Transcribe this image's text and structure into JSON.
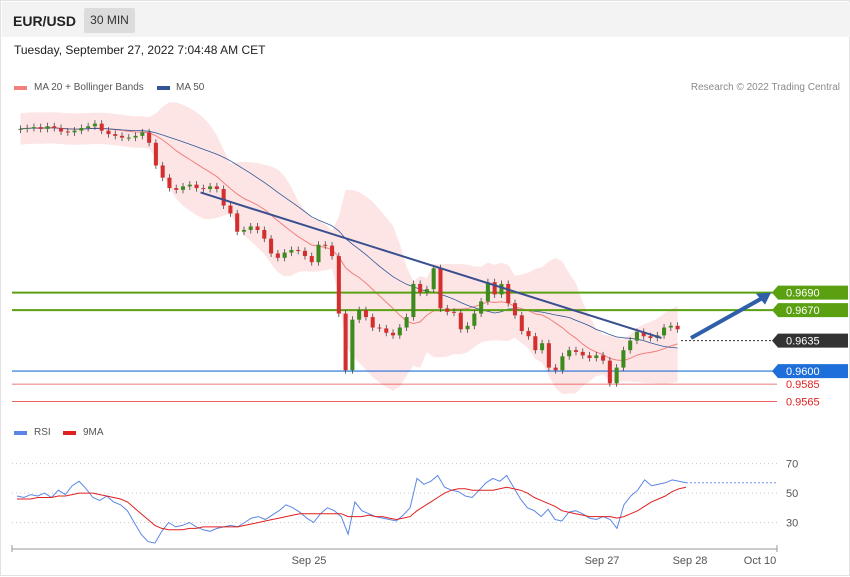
{
  "header": {
    "pair": "EUR/USD",
    "interval": "30 MIN",
    "datetime": "Tuesday, September 27, 2022 7:04:48 AM CET"
  },
  "legend": {
    "ma20_label": "MA 20 + Bollinger Bands",
    "ma50_label": "MA 50",
    "ma20_color": "#f08080",
    "ma50_color": "#2f5597",
    "credit": "Research © 2022 Trading Central"
  },
  "rsi_legend": {
    "rsi_label": "RSI",
    "ma_label": "9MA",
    "rsi_color": "#5b86e5",
    "ma_color": "#e02020"
  },
  "chart_data": [
    {
      "type": "candlestick",
      "title": "EUR/USD",
      "x_tick_labels": [
        "Sep 25",
        "Sep 27",
        "Sep 28",
        "Oct 10"
      ],
      "ylim": [
        0.9545,
        0.991
      ],
      "closes": [
        0.9878,
        0.9879,
        0.988,
        0.9878,
        0.9881,
        0.9879,
        0.9875,
        0.9874,
        0.9876,
        0.9879,
        0.9881,
        0.9884,
        0.9876,
        0.9872,
        0.987,
        0.9868,
        0.9868,
        0.987,
        0.9874,
        0.9862,
        0.9836,
        0.9822,
        0.981,
        0.9808,
        0.9812,
        0.9814,
        0.981,
        0.9809,
        0.9812,
        0.9809,
        0.979,
        0.9781,
        0.976,
        0.9762,
        0.9766,
        0.9762,
        0.9752,
        0.9735,
        0.973,
        0.9736,
        0.9739,
        0.9738,
        0.9732,
        0.9725,
        0.9745,
        0.9744,
        0.9732,
        0.9666,
        0.9601,
        0.9659,
        0.967,
        0.9662,
        0.965,
        0.9649,
        0.9644,
        0.9641,
        0.965,
        0.9662,
        0.97,
        0.969,
        0.9694,
        0.9718,
        0.9672,
        0.9668,
        0.9667,
        0.9648,
        0.9652,
        0.9666,
        0.968,
        0.9702,
        0.9688,
        0.97,
        0.9678,
        0.9664,
        0.9646,
        0.964,
        0.9624,
        0.9632,
        0.9604,
        0.9601,
        0.9617,
        0.9624,
        0.9622,
        0.9618,
        0.9615,
        0.9618,
        0.9612,
        0.9586,
        0.9604,
        0.9624,
        0.9635,
        0.9645,
        0.964,
        0.9638,
        0.9641,
        0.965,
        0.9652,
        0.9648
      ],
      "opens": [
        0.9877,
        0.9878,
        0.9879,
        0.988,
        0.9878,
        0.9881,
        0.9879,
        0.9875,
        0.9874,
        0.9876,
        0.9879,
        0.9881,
        0.9884,
        0.9876,
        0.9872,
        0.987,
        0.9868,
        0.9868,
        0.987,
        0.9874,
        0.9862,
        0.9836,
        0.9822,
        0.981,
        0.9808,
        0.9812,
        0.9814,
        0.981,
        0.9809,
        0.9812,
        0.9809,
        0.979,
        0.9781,
        0.976,
        0.9762,
        0.9766,
        0.9762,
        0.9752,
        0.9735,
        0.973,
        0.9736,
        0.9739,
        0.9738,
        0.9732,
        0.9725,
        0.9745,
        0.9744,
        0.9732,
        0.9666,
        0.9601,
        0.9659,
        0.967,
        0.9662,
        0.965,
        0.9649,
        0.9644,
        0.9641,
        0.965,
        0.9662,
        0.97,
        0.969,
        0.9694,
        0.9718,
        0.9672,
        0.9668,
        0.9667,
        0.9648,
        0.9652,
        0.9666,
        0.968,
        0.9702,
        0.9688,
        0.97,
        0.9678,
        0.9664,
        0.9646,
        0.964,
        0.9624,
        0.9632,
        0.9604,
        0.9601,
        0.9617,
        0.9624,
        0.9622,
        0.9618,
        0.9615,
        0.9618,
        0.9612,
        0.9586,
        0.9604,
        0.9624,
        0.9635,
        0.9645,
        0.964,
        0.9638,
        0.9641,
        0.965,
        0.9652
      ],
      "levels": [
        {
          "value": 0.969,
          "label": "0.9690",
          "color": "#5aa010",
          "style": "solid-filled"
        },
        {
          "value": 0.967,
          "label": "0.9670",
          "color": "#5aa010",
          "style": "solid-filled"
        },
        {
          "value": 0.9635,
          "label": "0.9635",
          "color": "#333333",
          "style": "dotted-filled"
        },
        {
          "value": 0.96,
          "label": "0.9600",
          "color": "#1e6fd9",
          "style": "solid-filled"
        },
        {
          "value": 0.9585,
          "label": "0.9585",
          "color": "#e02020",
          "style": "thin-text"
        },
        {
          "value": 0.9565,
          "label": "0.9565",
          "color": "#e02020",
          "style": "thin-text"
        }
      ],
      "trendline": {
        "from_index": 47,
        "from_value": 0.9805,
        "to_index": 165,
        "to_value": 0.9638
      },
      "forecast_arrow": {
        "from_value": 0.9638,
        "to_value": 0.969
      },
      "series": [
        {
          "name": "MA 20 + Bollinger Bands"
        },
        {
          "name": "MA 50"
        }
      ]
    },
    {
      "type": "line",
      "title": "RSI",
      "y_tick_labels": [
        "70",
        "50",
        "30"
      ],
      "ylim": [
        14,
        80
      ],
      "series": [
        {
          "name": "RSI",
          "values": [
            48,
            47,
            49,
            48,
            50,
            47,
            52,
            49,
            55,
            58,
            53,
            47,
            45,
            48,
            44,
            42,
            38,
            30,
            22,
            17,
            16,
            24,
            30,
            27,
            28,
            30,
            27,
            25,
            24,
            26,
            27,
            28,
            27,
            30,
            33,
            34,
            32,
            35,
            38,
            42,
            40,
            37,
            33,
            30,
            36,
            40,
            38,
            34,
            22,
            44,
            38,
            36,
            34,
            33,
            32,
            31,
            35,
            40,
            60,
            56,
            58,
            62,
            54,
            52,
            51,
            48,
            47,
            52,
            57,
            60,
            58,
            62,
            54,
            46,
            40,
            38,
            34,
            39,
            32,
            31,
            37,
            38,
            36,
            33,
            32,
            34,
            32,
            26,
            42,
            48,
            52,
            59,
            55,
            56,
            57,
            59,
            58,
            57
          ]
        },
        {
          "name": "9MA",
          "values": [
            46,
            46,
            46,
            47,
            47,
            47,
            48,
            48,
            49,
            50,
            50,
            50,
            49,
            48,
            47,
            46,
            44,
            40,
            36,
            32,
            28,
            26,
            25,
            25,
            25,
            26,
            26,
            27,
            27,
            27,
            27,
            27,
            27,
            28,
            29,
            30,
            31,
            32,
            33,
            34,
            35,
            36,
            36,
            36,
            36,
            36,
            36,
            36,
            34,
            34,
            34,
            35,
            34,
            34,
            33,
            32,
            33,
            34,
            38,
            41,
            44,
            47,
            50,
            52,
            53,
            53,
            52,
            52,
            52,
            52,
            53,
            54,
            53,
            52,
            50,
            47,
            45,
            43,
            41,
            38,
            37,
            36,
            35,
            34,
            34,
            34,
            34,
            33,
            34,
            36,
            38,
            41,
            44,
            46,
            48,
            51,
            53,
            54
          ]
        }
      ]
    }
  ]
}
